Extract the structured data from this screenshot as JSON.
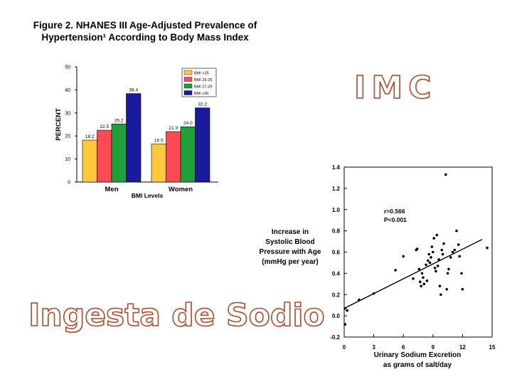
{
  "figure": {
    "title_line1": "Figure 2.  NHANES III Age-Adjusted Prevalence of",
    "title_line2": "Hypertension¹ According to Body Mass Index"
  },
  "headings": {
    "imc": "IMC",
    "sodio": "Ingesta de Sodio"
  },
  "chart_data": [
    {
      "type": "bar",
      "ylabel": "PERCENT",
      "xlabel": "BMI Levels",
      "ylim": [
        0,
        50
      ],
      "yticks": [
        0,
        10,
        20,
        30,
        40,
        50
      ],
      "categories": [
        "Men",
        "Women"
      ],
      "legend_position": "top-right",
      "series": [
        {
          "name": "BMI <25",
          "color": "#ffc83d",
          "values": [
            18.2,
            16.5
          ],
          "labels": [
            "18.2",
            "16.5"
          ]
        },
        {
          "name": "BMI 25-25",
          "color": "#ff4a55",
          "values": [
            22.5,
            21.9
          ],
          "labels": [
            "22.5",
            "21.9"
          ]
        },
        {
          "name": "BMI 27-29",
          "color": "#1fa03a",
          "values": [
            25.2,
            24.0
          ],
          "labels": [
            "25.2",
            "24.0"
          ]
        },
        {
          "name": "BMI ≥30",
          "color": "#1a1a9e",
          "values": [
            38.4,
            32.2
          ],
          "labels": [
            "38.4",
            "32.2"
          ]
        }
      ]
    },
    {
      "type": "scatter",
      "ylabel_lines": [
        "Increase in",
        "Systolic Blood",
        "Pressure with Age",
        "(mmHg per year)"
      ],
      "xlabel_lines": [
        "Urinary Sodium Excretion",
        "as grams of salt/day"
      ],
      "xlim": [
        0,
        15
      ],
      "ylim": [
        -0.2,
        1.4
      ],
      "xticks": [
        0,
        3,
        6,
        9,
        12,
        15
      ],
      "yticks": [
        -0.2,
        0.0,
        0.2,
        0.4,
        0.6,
        0.8,
        1.0,
        1.2,
        1.4
      ],
      "ytick_labels": [
        "-0.2",
        "0.0",
        "0.2",
        "0.4",
        "0.6",
        "0.8",
        "1.0",
        "1.2",
        "1.4"
      ],
      "annotation_lines": [
        "r=0.566",
        "P<0.001"
      ],
      "trendline": {
        "x": [
          0,
          14
        ],
        "y": [
          0.07,
          0.72
        ]
      },
      "points": [
        [
          0.1,
          0.07
        ],
        [
          0.3,
          0.05
        ],
        [
          0.1,
          -0.08
        ],
        [
          1.5,
          0.15
        ],
        [
          3.0,
          0.21
        ],
        [
          5.2,
          0.43
        ],
        [
          6.0,
          0.56
        ],
        [
          7.0,
          0.35
        ],
        [
          7.3,
          0.62
        ],
        [
          7.4,
          0.63
        ],
        [
          7.6,
          0.44
        ],
        [
          7.7,
          0.32
        ],
        [
          7.8,
          0.28
        ],
        [
          7.9,
          0.4
        ],
        [
          8.0,
          0.36
        ],
        [
          8.1,
          0.3
        ],
        [
          8.3,
          0.48
        ],
        [
          8.4,
          0.33
        ],
        [
          8.5,
          0.52
        ],
        [
          8.6,
          0.58
        ],
        [
          8.7,
          0.5
        ],
        [
          8.8,
          0.55
        ],
        [
          8.9,
          0.65
        ],
        [
          9.0,
          0.6
        ],
        [
          9.1,
          0.73
        ],
        [
          9.2,
          0.45
        ],
        [
          9.3,
          0.42
        ],
        [
          9.4,
          0.76
        ],
        [
          9.5,
          0.47
        ],
        [
          9.6,
          0.53
        ],
        [
          9.7,
          0.28
        ],
        [
          9.8,
          0.2
        ],
        [
          9.9,
          0.62
        ],
        [
          10.0,
          0.58
        ],
        [
          10.1,
          0.68
        ],
        [
          10.3,
          1.33
        ],
        [
          10.4,
          0.25
        ],
        [
          10.5,
          0.4
        ],
        [
          10.6,
          0.44
        ],
        [
          10.8,
          0.55
        ],
        [
          11.0,
          0.6
        ],
        [
          11.2,
          0.62
        ],
        [
          11.4,
          0.8
        ],
        [
          11.6,
          0.67
        ],
        [
          11.7,
          0.56
        ],
        [
          11.9,
          0.4
        ],
        [
          12.0,
          0.25
        ],
        [
          14.5,
          0.64
        ]
      ]
    }
  ]
}
